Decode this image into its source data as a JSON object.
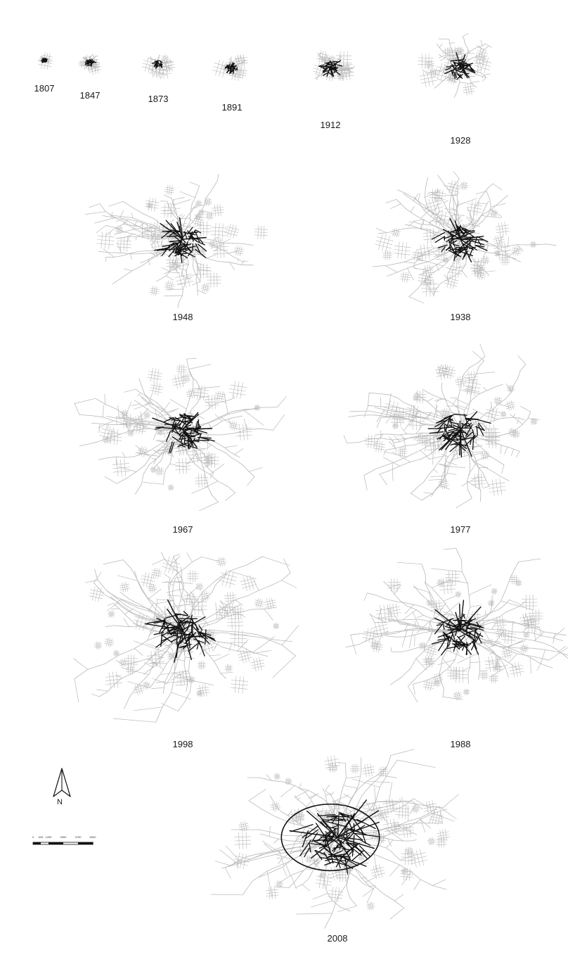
{
  "figure": {
    "type": "urban street network growth series",
    "colors": {
      "background": "#ffffff",
      "network_gray": "#b9b9b9",
      "historic_core": "#111111",
      "label": "#1a1a1a"
    },
    "panels": [
      {
        "year": "1807",
        "extent": 0.04,
        "core": 0.02
      },
      {
        "year": "1847",
        "extent": 0.09,
        "core": 0.03
      },
      {
        "year": "1873",
        "extent": 0.1,
        "core": 0.03
      },
      {
        "year": "1891",
        "extent": 0.12,
        "core": 0.04
      },
      {
        "year": "1912",
        "extent": 0.21,
        "core": 0.06
      },
      {
        "year": "1928",
        "extent": 0.32,
        "core": 0.08
      },
      {
        "year": "1948",
        "extent": 0.72,
        "core": 0.14
      },
      {
        "year": "1938",
        "extent": 0.72,
        "core": 0.14
      },
      {
        "year": "1967",
        "extent": 0.76,
        "core": 0.15
      },
      {
        "year": "1977",
        "extent": 0.8,
        "core": 0.15
      },
      {
        "year": "1998",
        "extent": 0.92,
        "core": 0.17
      },
      {
        "year": "1988",
        "extent": 0.88,
        "core": 0.16
      },
      {
        "year": "2008",
        "extent": 1.0,
        "core": 0.25,
        "ring_road": true
      }
    ]
  },
  "north_arrow": {
    "letter": "N",
    "icon": "north-arrow-icon"
  },
  "scale_bar": {
    "ticks": [
      "0",
      "625",
      "1250",
      "2500",
      "3750",
      "5000"
    ]
  }
}
